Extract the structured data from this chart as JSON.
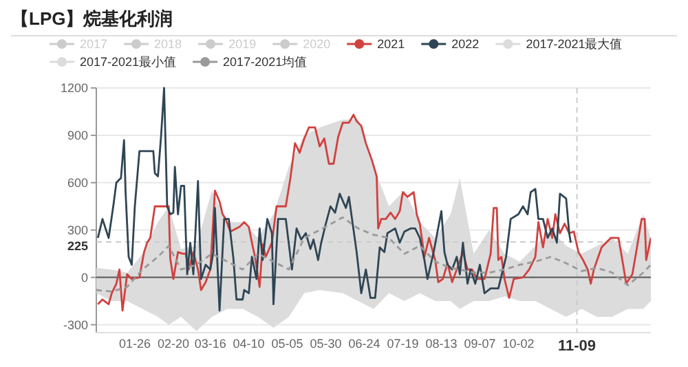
{
  "chart_data": {
    "type": "line",
    "title": "【LPG】烷基化利润",
    "legend": "top",
    "grid": "y",
    "xlim": [
      "--01-01",
      "--12-27"
    ],
    "ylim": [
      -350,
      1200
    ],
    "yticks": [
      -300,
      0,
      300,
      600,
      900,
      1200
    ],
    "xticks": [
      {
        "value": "--01-26",
        "label": "01-26"
      },
      {
        "value": "--02-20",
        "label": "02-20"
      },
      {
        "value": "--03-16",
        "label": "03-16"
      },
      {
        "value": "--04-10",
        "label": "04-10"
      },
      {
        "value": "--05-05",
        "label": "05-05"
      },
      {
        "value": "--05-30",
        "label": "05-30"
      },
      {
        "value": "--06-24",
        "label": "06-24"
      },
      {
        "value": "--07-19",
        "label": "07-19"
      },
      {
        "value": "--08-13",
        "label": "08-13"
      },
      {
        "value": "--09-07",
        "label": "09-07"
      },
      {
        "value": "--10-02",
        "label": "10-02"
      }
    ],
    "ref_lines": [
      {
        "axis": "y",
        "value": 0,
        "color": "#555555"
      },
      {
        "axis": "y",
        "value": 225,
        "label": "225",
        "line_style": "dashed",
        "color": "#cccccc"
      },
      {
        "axis": "x",
        "value": "--11-09",
        "label": "11-09",
        "line_style": "dashed",
        "color": "#cccccc"
      }
    ],
    "series": [
      {
        "name": "2017",
        "color": "#cccccc"
      },
      {
        "name": "2018",
        "color": "#cccccc"
      },
      {
        "name": "2019",
        "color": "#cccccc"
      },
      {
        "name": "2020",
        "color": "#cccccc"
      },
      {
        "name": "2021",
        "color": "#d0413f",
        "x": [
          "--01-02",
          "--01-05",
          "--01-09",
          "--01-11",
          "--01-14",
          "--01-16",
          "--01-18",
          "--01-21",
          "--01-24",
          "--01-29",
          "--02-01",
          "--02-03",
          "--02-05",
          "--02-08",
          "--02-13",
          "--02-17",
          "--02-18",
          "--02-20",
          "--02-23",
          "--02-26",
          "--02-28",
          "--03-02",
          "--03-05",
          "--03-08",
          "--03-10",
          "--03-13",
          "--03-16",
          "--03-19",
          "--03-22",
          "--03-24",
          "--03-26",
          "--03-29",
          "--04-04",
          "--04-07",
          "--04-10",
          "--04-12",
          "--04-14",
          "--04-17",
          "--04-19",
          "--04-21",
          "--04-25",
          "--04-28",
          "--05-04",
          "--05-07",
          "--05-10",
          "--05-13",
          "--05-16",
          "--05-19",
          "--05-23",
          "--05-26",
          "--05-29",
          "--06-01",
          "--06-04",
          "--06-07",
          "--06-10",
          "--06-14",
          "--06-17",
          "--06-19",
          "--06-22",
          "--06-25",
          "--06-29",
          "--07-02",
          "--07-03",
          "--07-05",
          "--07-08",
          "--07-11",
          "--07-14",
          "--07-17",
          "--07-19",
          "--07-22",
          "--07-26",
          "--07-28",
          "--07-30",
          "--08-02",
          "--08-05",
          "--08-09",
          "--08-11",
          "--08-14",
          "--08-17",
          "--08-20",
          "--08-23",
          "--08-27",
          "--08-30",
          "--09-02",
          "--09-05",
          "--09-10",
          "--09-14",
          "--09-16",
          "--09-18",
          "--09-19",
          "--09-21",
          "--09-23",
          "--09-26",
          "--09-29",
          "--10-05",
          "--10-09",
          "--10-13",
          "--10-15",
          "--10-18",
          "--10-21",
          "--10-24",
          "--10-26",
          "--10-29",
          "--11-01",
          "--11-04",
          "--11-07",
          "--11-10",
          "--11-13",
          "--11-16",
          "--11-18",
          "--11-20",
          "--11-25",
          "--11-28",
          "--12-01",
          "--12-06",
          "--12-09",
          "--12-11",
          "--12-15",
          "--12-18",
          "--12-21",
          "--12-23",
          "--12-24",
          "--12-27"
        ],
        "values": [
          -170,
          -140,
          -170,
          -100,
          -40,
          50,
          -210,
          20,
          -10,
          0,
          160,
          220,
          250,
          450,
          450,
          450,
          120,
          -10,
          160,
          150,
          150,
          50,
          160,
          50,
          -80,
          -30,
          50,
          550,
          480,
          400,
          370,
          290,
          320,
          350,
          320,
          220,
          130,
          -60,
          210,
          130,
          220,
          450,
          450,
          630,
          850,
          790,
          880,
          950,
          950,
          830,
          880,
          720,
          720,
          890,
          980,
          980,
          1030,
          990,
          960,
          850,
          740,
          640,
          310,
          370,
          370,
          410,
          370,
          420,
          540,
          510,
          540,
          400,
          340,
          130,
          250,
          110,
          -30,
          -10,
          90,
          -30,
          50,
          160,
          50,
          50,
          -10,
          -10,
          150,
          440,
          440,
          110,
          130,
          -10,
          -130,
          -10,
          0,
          50,
          130,
          350,
          190,
          370,
          250,
          400,
          280,
          340,
          280,
          290,
          160,
          110,
          50,
          -40,
          50,
          190,
          220,
          250,
          250,
          80,
          -40,
          20,
          190,
          370,
          370,
          110,
          250
        ]
      },
      {
        "name": "2022",
        "color": "#2f4554",
        "x": [
          "--01-02",
          "--01-05",
          "--01-09",
          "--01-12",
          "--01-14",
          "--01-17",
          "--01-19",
          "--01-20",
          "--01-22",
          "--01-24",
          "--01-26",
          "--01-29",
          "--02-07",
          "--02-08",
          "--02-10",
          "--02-12",
          "--02-14",
          "--02-16",
          "--02-18",
          "--02-20",
          "--02-21",
          "--02-23",
          "--02-25",
          "--02-27",
          "--03-01",
          "--03-03",
          "--03-05",
          "--03-08",
          "--03-10",
          "--03-13",
          "--03-16",
          "--03-18",
          "--03-19",
          "--03-22",
          "--03-25",
          "--03-28",
          "--03-31",
          "--04-02",
          "--04-06",
          "--04-07",
          "--04-10",
          "--04-12",
          "--04-15",
          "--04-17",
          "--04-19",
          "--04-22",
          "--04-25",
          "--04-26",
          "--04-29",
          "--05-04",
          "--05-08",
          "--05-11",
          "--05-14",
          "--05-17",
          "--05-20",
          "--05-22",
          "--05-25",
          "--05-27",
          "--05-30",
          "--06-02",
          "--06-05",
          "--06-08",
          "--06-12",
          "--06-14",
          "--06-19",
          "--06-22",
          "--06-25",
          "--06-28",
          "--07-01",
          "--07-04",
          "--07-07",
          "--07-09",
          "--07-14",
          "--07-17",
          "--07-20",
          "--07-24",
          "--07-27",
          "--07-30",
          "--08-02",
          "--08-04",
          "--08-08",
          "--08-13",
          "--08-15",
          "--08-17",
          "--08-20",
          "--08-23",
          "--08-25",
          "--08-27",
          "--08-30",
          "--09-01",
          "--09-04",
          "--09-07",
          "--09-10",
          "--09-14",
          "--09-19",
          "--09-22",
          "--09-24",
          "--09-27",
          "--10-02",
          "--10-05",
          "--10-08",
          "--10-10",
          "--10-13",
          "--10-15",
          "--10-18",
          "--10-21",
          "--10-24",
          "--10-27",
          "--10-29",
          "--11-02",
          "--11-04",
          "--11-05"
        ],
        "values": [
          250,
          370,
          250,
          450,
          600,
          630,
          870,
          540,
          130,
          80,
          450,
          800,
          800,
          660,
          640,
          890,
          1200,
          450,
          400,
          410,
          700,
          400,
          580,
          580,
          20,
          220,
          20,
          610,
          -10,
          80,
          50,
          160,
          440,
          -210,
          370,
          370,
          120,
          -140,
          -140,
          -80,
          -100,
          130,
          -10,
          310,
          110,
          370,
          280,
          -170,
          370,
          370,
          50,
          310,
          240,
          280,
          180,
          240,
          110,
          220,
          340,
          450,
          410,
          530,
          440,
          510,
          160,
          -100,
          50,
          -130,
          -130,
          190,
          160,
          280,
          310,
          220,
          290,
          310,
          310,
          250,
          110,
          -10,
          160,
          420,
          160,
          80,
          50,
          130,
          20,
          220,
          -40,
          50,
          -40,
          80,
          -100,
          -70,
          -70,
          50,
          130,
          370,
          400,
          450,
          400,
          540,
          560,
          370,
          370,
          250,
          310,
          220,
          530,
          500,
          280,
          220
        ]
      },
      {
        "name": "2017-2021最大值",
        "color": "#dcdcdc",
        "type": "area",
        "x": [
          "--01-01",
          "--01-11",
          "--01-21",
          "--01-31",
          "--02-10",
          "--02-17",
          "--02-25",
          "--03-07",
          "--03-17",
          "--03-27",
          "--04-06",
          "--04-16",
          "--04-26",
          "--05-06",
          "--05-16",
          "--05-26",
          "--06-10",
          "--06-20",
          "--06-30",
          "--07-10",
          "--07-20",
          "--07-30",
          "--08-09",
          "--08-19",
          "--08-25",
          "--09-03",
          "--09-13",
          "--09-23",
          "--10-03",
          "--10-13",
          "--10-23",
          "--11-02",
          "--11-12",
          "--11-22",
          "--12-02",
          "--12-12",
          "--12-22",
          "--12-27"
        ],
        "values": [
          60,
          50,
          30,
          150,
          350,
          450,
          180,
          200,
          550,
          350,
          350,
          250,
          400,
          700,
          900,
          950,
          1000,
          1000,
          700,
          450,
          550,
          350,
          250,
          400,
          630,
          150,
          300,
          150,
          100,
          200,
          300,
          200,
          150,
          200,
          250,
          150,
          400,
          250
        ]
      },
      {
        "name": "2017-2021最小值",
        "color": "#dcdcdc",
        "type": "area",
        "x": [
          "--01-01",
          "--01-11",
          "--01-21",
          "--01-31",
          "--02-10",
          "--02-17",
          "--02-25",
          "--03-07",
          "--03-17",
          "--03-27",
          "--04-06",
          "--04-16",
          "--04-26",
          "--05-06",
          "--05-16",
          "--05-26",
          "--06-10",
          "--06-20",
          "--06-30",
          "--07-10",
          "--07-20",
          "--07-30",
          "--08-09",
          "--08-19",
          "--08-25",
          "--09-03",
          "--09-13",
          "--09-23",
          "--10-03",
          "--10-13",
          "--10-23",
          "--11-02",
          "--11-12",
          "--11-22",
          "--12-02",
          "--12-12",
          "--12-22",
          "--12-27"
        ],
        "values": [
          -100,
          -150,
          -150,
          -200,
          -250,
          -300,
          -250,
          -340,
          -250,
          -200,
          -200,
          -250,
          -320,
          -250,
          -100,
          -80,
          -100,
          -150,
          -200,
          -100,
          -150,
          -100,
          -150,
          -150,
          -200,
          -150,
          -150,
          -120,
          -150,
          -150,
          -200,
          -250,
          -200,
          -250,
          -250,
          -200,
          -200,
          -150
        ]
      },
      {
        "name": "2017-2021均值",
        "color": "#9a9a9a",
        "line_style": "dashed",
        "x": [
          "--01-01",
          "--01-11",
          "--01-21",
          "--01-31",
          "--02-10",
          "--02-17",
          "--02-25",
          "--03-07",
          "--03-17",
          "--03-27",
          "--04-06",
          "--04-16",
          "--04-26",
          "--05-06",
          "--05-16",
          "--05-26",
          "--06-10",
          "--06-20",
          "--06-30",
          "--07-10",
          "--07-20",
          "--07-30",
          "--08-09",
          "--08-19",
          "--08-25",
          "--09-03",
          "--09-13",
          "--09-23",
          "--10-03",
          "--10-13",
          "--10-23",
          "--11-02",
          "--11-12",
          "--11-22",
          "--12-02",
          "--12-12",
          "--12-22",
          "--12-27"
        ],
        "values": [
          -80,
          -90,
          -60,
          50,
          130,
          200,
          50,
          80,
          150,
          100,
          50,
          150,
          100,
          50,
          250,
          300,
          380,
          310,
          270,
          250,
          150,
          200,
          100,
          60,
          50,
          30,
          30,
          50,
          80,
          100,
          130,
          90,
          40,
          60,
          30,
          -50,
          30,
          80
        ]
      }
    ]
  }
}
